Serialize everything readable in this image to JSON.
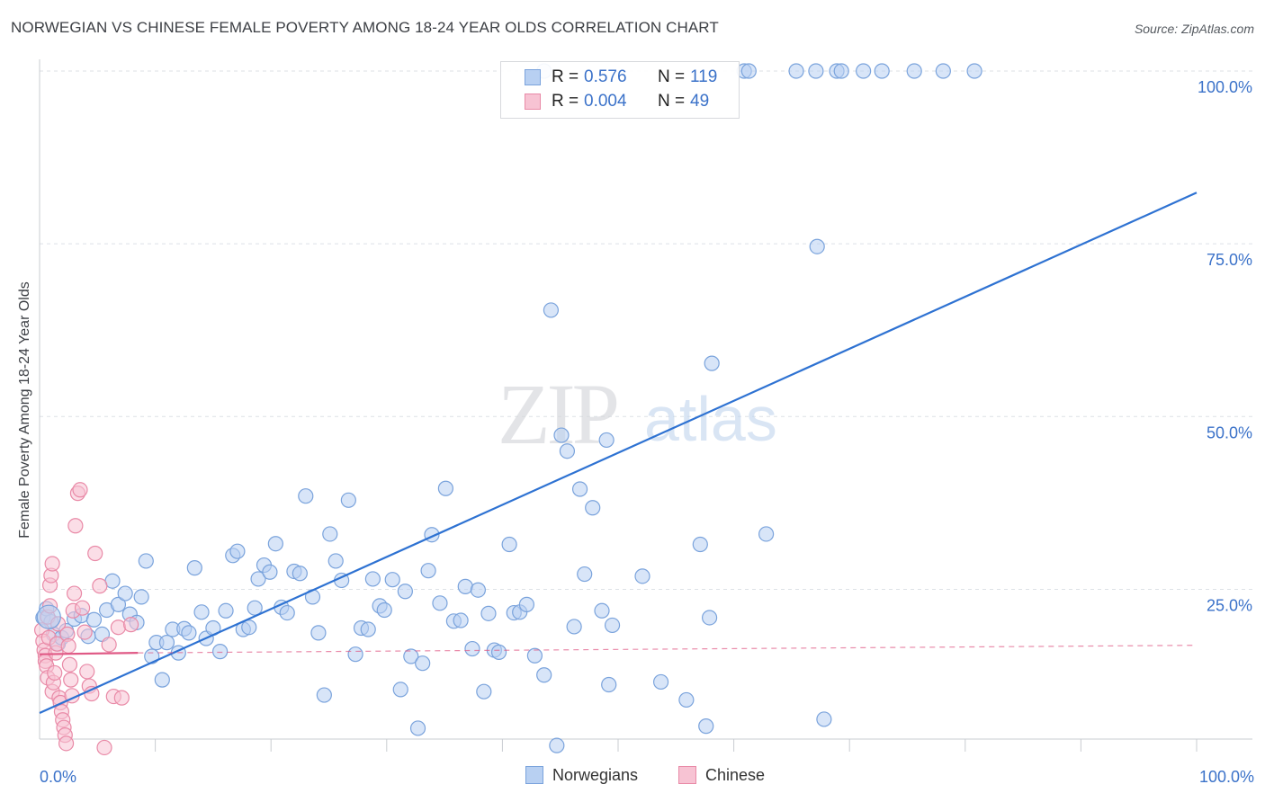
{
  "title": "NORWEGIAN VS CHINESE FEMALE POVERTY AMONG 18-24 YEAR OLDS CORRELATION CHART",
  "source": "Source: ZipAtlas.com",
  "watermark": {
    "zip": "ZIP",
    "atlas": "atlas"
  },
  "legend": {
    "norwegians": {
      "r_label": "R =",
      "r_value": "0.576",
      "n_label": "N =",
      "n_value": "119"
    },
    "chinese": {
      "r_label": "R =",
      "r_value": "0.004",
      "n_label": "N =",
      "n_value": "49"
    }
  },
  "bottom_legend": {
    "norwegians": "Norwegians",
    "chinese": "Chinese"
  },
  "colors": {
    "blue_fill": "#b8d0f2",
    "blue_stroke": "#7aa3dc",
    "blue_line": "#2e72d2",
    "pink_fill": "#f7c3d3",
    "pink_stroke": "#e98aa7",
    "pink_line": "#e05a86",
    "value_text": "#3b72c9",
    "grid": "#dde1e6"
  },
  "chart_data": {
    "type": "scatter",
    "title": "NORWEGIAN VS CHINESE FEMALE POVERTY AMONG 18-24 YEAR OLDS CORRELATION CHART",
    "xlabel": "",
    "ylabel": "Female Poverty Among 18-24 Year Olds",
    "xlim": [
      0,
      100
    ],
    "ylim": [
      0,
      100
    ],
    "x_tick_labels": [
      "0.0%",
      "100.0%"
    ],
    "y_tick_labels": [
      "25.0%",
      "50.0%",
      "75.0%",
      "100.0%"
    ],
    "y_ticks": [
      25,
      50,
      75,
      100
    ],
    "grid": true,
    "legend_position": "top-center",
    "series": [
      {
        "name": "Norwegians",
        "trend": {
          "x": [
            0,
            100
          ],
          "y": [
            7.1,
            82.4
          ]
        },
        "points": [
          [
            0.3,
            20.9
          ],
          [
            0.6,
            22.2
          ],
          [
            1.0,
            20.3
          ],
          [
            1.2,
            18.5
          ],
          [
            1.6,
            17.1
          ],
          [
            1.9,
            18.0
          ],
          [
            2.3,
            19.0
          ],
          [
            3.0,
            20.7
          ],
          [
            3.6,
            21.2
          ],
          [
            4.2,
            18.2
          ],
          [
            4.7,
            20.6
          ],
          [
            5.4,
            18.5
          ],
          [
            5.8,
            22.0
          ],
          [
            6.3,
            26.2
          ],
          [
            6.8,
            22.8
          ],
          [
            7.4,
            24.4
          ],
          [
            7.8,
            21.4
          ],
          [
            8.4,
            20.2
          ],
          [
            8.8,
            23.9
          ],
          [
            9.2,
            29.1
          ],
          [
            9.7,
            15.3
          ],
          [
            10.1,
            17.3
          ],
          [
            10.6,
            11.9
          ],
          [
            11.0,
            17.3
          ],
          [
            11.5,
            19.2
          ],
          [
            12.0,
            15.8
          ],
          [
            12.5,
            19.3
          ],
          [
            12.9,
            18.7
          ],
          [
            13.4,
            28.1
          ],
          [
            14.0,
            21.7
          ],
          [
            14.4,
            17.9
          ],
          [
            15.0,
            19.4
          ],
          [
            15.6,
            16.0
          ],
          [
            16.1,
            21.9
          ],
          [
            16.7,
            29.9
          ],
          [
            17.1,
            30.5
          ],
          [
            17.6,
            19.2
          ],
          [
            18.1,
            19.5
          ],
          [
            18.6,
            22.3
          ],
          [
            18.9,
            26.5
          ],
          [
            19.4,
            28.5
          ],
          [
            19.9,
            27.5
          ],
          [
            20.4,
            31.6
          ],
          [
            20.9,
            22.4
          ],
          [
            21.4,
            21.6
          ],
          [
            22.0,
            27.6
          ],
          [
            22.5,
            27.3
          ],
          [
            23.0,
            38.5
          ],
          [
            23.6,
            23.9
          ],
          [
            24.1,
            18.7
          ],
          [
            24.6,
            9.7
          ],
          [
            25.1,
            33.0
          ],
          [
            25.6,
            29.1
          ],
          [
            26.1,
            26.3
          ],
          [
            26.7,
            37.9
          ],
          [
            27.3,
            15.6
          ],
          [
            27.8,
            19.4
          ],
          [
            28.4,
            19.2
          ],
          [
            28.8,
            26.5
          ],
          [
            29.4,
            22.6
          ],
          [
            29.8,
            22.0
          ],
          [
            30.5,
            26.4
          ],
          [
            31.2,
            10.5
          ],
          [
            31.6,
            24.7
          ],
          [
            32.1,
            15.3
          ],
          [
            32.7,
            4.9
          ],
          [
            33.1,
            14.3
          ],
          [
            33.6,
            27.7
          ],
          [
            33.9,
            32.9
          ],
          [
            34.6,
            23.0
          ],
          [
            35.1,
            39.6
          ],
          [
            35.8,
            20.4
          ],
          [
            36.4,
            20.5
          ],
          [
            36.8,
            25.4
          ],
          [
            37.4,
            16.4
          ],
          [
            37.9,
            24.9
          ],
          [
            38.4,
            10.2
          ],
          [
            38.8,
            21.5
          ],
          [
            39.3,
            16.2
          ],
          [
            39.7,
            15.9
          ],
          [
            40.6,
            31.5
          ],
          [
            41.0,
            21.6
          ],
          [
            41.5,
            21.7
          ],
          [
            42.1,
            22.8
          ],
          [
            42.8,
            15.4
          ],
          [
            43.6,
            12.6
          ],
          [
            44.2,
            65.4
          ],
          [
            44.7,
            2.4
          ],
          [
            45.1,
            47.3
          ],
          [
            45.6,
            45.0
          ],
          [
            46.2,
            19.6
          ],
          [
            46.7,
            39.5
          ],
          [
            47.1,
            27.2
          ],
          [
            47.8,
            36.8
          ],
          [
            48.6,
            21.9
          ],
          [
            49.2,
            11.2
          ],
          [
            49.5,
            19.8
          ],
          [
            49.0,
            46.6
          ],
          [
            52.1,
            26.9
          ],
          [
            53.7,
            11.6
          ],
          [
            55.9,
            9.0
          ],
          [
            57.1,
            31.5
          ],
          [
            57.6,
            5.2
          ],
          [
            57.9,
            20.9
          ],
          [
            58.1,
            57.7
          ],
          [
            62.8,
            33.0
          ],
          [
            67.8,
            6.2
          ],
          [
            67.2,
            74.6
          ],
          [
            75.6,
            100.0
          ],
          [
            60.9,
            100.0
          ],
          [
            61.3,
            100.0
          ],
          [
            65.4,
            100.0
          ],
          [
            67.1,
            100.0
          ],
          [
            68.9,
            100.0
          ],
          [
            69.3,
            100.0
          ],
          [
            71.2,
            100.0
          ],
          [
            72.8,
            100.0
          ],
          [
            78.1,
            100.0
          ],
          [
            80.8,
            100.0
          ],
          [
            43.6,
            100.0
          ]
        ]
      },
      {
        "name": "Chinese",
        "trend": {
          "x": [
            0,
            8.5,
            100
          ],
          "y": [
            15.6,
            15.8,
            16.9
          ]
        },
        "points": [
          [
            0.2,
            19.1
          ],
          [
            0.3,
            17.5
          ],
          [
            0.4,
            16.2
          ],
          [
            0.5,
            15.4
          ],
          [
            0.5,
            14.6
          ],
          [
            0.6,
            13.9
          ],
          [
            0.7,
            12.2
          ],
          [
            0.7,
            21.0
          ],
          [
            0.8,
            18.0
          ],
          [
            0.9,
            22.6
          ],
          [
            0.9,
            25.6
          ],
          [
            1.0,
            27.0
          ],
          [
            1.1,
            28.7
          ],
          [
            1.1,
            10.2
          ],
          [
            1.2,
            11.5
          ],
          [
            1.3,
            12.9
          ],
          [
            1.4,
            15.8
          ],
          [
            1.5,
            17.1
          ],
          [
            1.6,
            20.0
          ],
          [
            1.7,
            9.3
          ],
          [
            1.8,
            8.6
          ],
          [
            1.9,
            7.3
          ],
          [
            2.0,
            6.1
          ],
          [
            2.1,
            5.0
          ],
          [
            2.2,
            3.9
          ],
          [
            2.3,
            2.7
          ],
          [
            2.4,
            18.5
          ],
          [
            2.5,
            16.8
          ],
          [
            2.6,
            14.1
          ],
          [
            2.7,
            11.9
          ],
          [
            2.8,
            9.6
          ],
          [
            2.9,
            21.9
          ],
          [
            3.0,
            24.4
          ],
          [
            3.1,
            34.2
          ],
          [
            3.3,
            38.9
          ],
          [
            3.5,
            39.4
          ],
          [
            3.7,
            22.3
          ],
          [
            3.9,
            18.8
          ],
          [
            4.1,
            13.1
          ],
          [
            4.3,
            11.0
          ],
          [
            4.5,
            9.9
          ],
          [
            4.8,
            30.2
          ],
          [
            5.2,
            25.5
          ],
          [
            5.6,
            2.1
          ],
          [
            6.0,
            17.0
          ],
          [
            6.4,
            9.5
          ],
          [
            6.8,
            19.5
          ],
          [
            7.1,
            9.3
          ],
          [
            7.9,
            19.9
          ]
        ]
      }
    ]
  }
}
